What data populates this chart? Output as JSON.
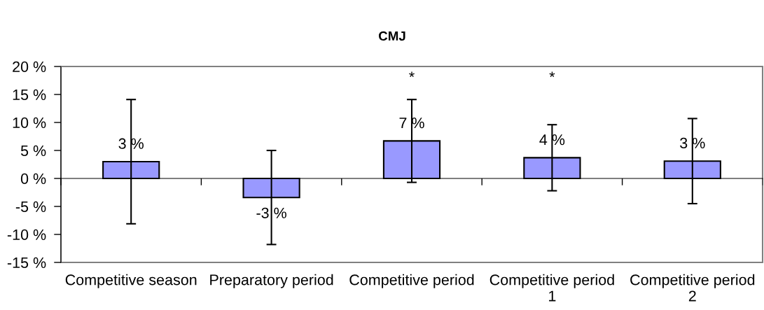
{
  "chart_data": {
    "type": "bar",
    "title": "CMJ",
    "categories": [
      "Competitive season",
      "Preparatory period",
      "Competitive period",
      "Competitive period 1",
      "Competitive period 2"
    ],
    "values": [
      3.0,
      -3.4,
      6.7,
      3.7,
      3.1
    ],
    "errors": [
      11.1,
      8.4,
      7.4,
      5.9,
      7.6
    ],
    "color": "#9999ff",
    "value_labels": [
      "3 %",
      "-3 %",
      "7 %",
      "4 %",
      "3 %"
    ],
    "ylim": [
      -15,
      20
    ],
    "yticks": [
      {
        "value": -15,
        "label": "-15 %"
      },
      {
        "value": -10,
        "label": "-10 %"
      },
      {
        "value": -5,
        "label": "-5 %"
      },
      {
        "value": 0,
        "label": "0 %"
      },
      {
        "value": 5,
        "label": "5 %"
      },
      {
        "value": 10,
        "label": "10 %"
      },
      {
        "value": 15,
        "label": "15 %"
      },
      {
        "value": 20,
        "label": "20 %"
      }
    ],
    "annotations": [
      "*",
      "*"
    ]
  }
}
